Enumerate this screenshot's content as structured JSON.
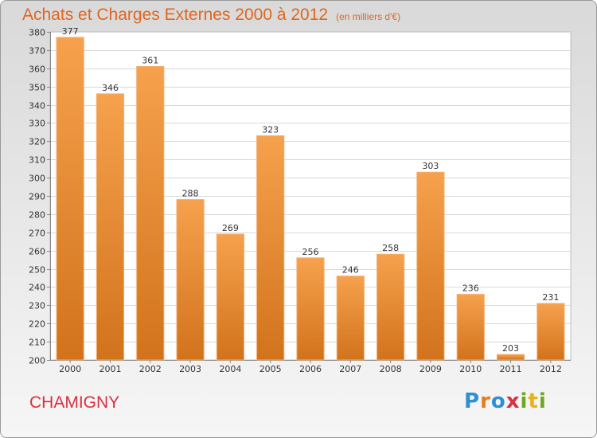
{
  "header": {
    "title": "Achats et Charges Externes 2000 à 2012",
    "unit": "(en milliers d'€)"
  },
  "footer": {
    "commune": "CHAMIGNY",
    "logo": "Proxiti",
    "logo_letters": [
      "P",
      "r",
      "o",
      "x",
      "i",
      "t",
      "i"
    ],
    "logo_colors": [
      "#2f8fd1",
      "#e87b1c",
      "#2f8fd1",
      "#d9313e",
      "#6aa81f",
      "#e8b21c",
      "#6aa81f"
    ]
  },
  "colors": {
    "bar_top": "#f6a14d",
    "bar_bottom": "#d2731c",
    "title": "#e0661f",
    "commune": "#d9313e"
  },
  "chart_data": {
    "type": "bar",
    "categories": [
      "2000",
      "2001",
      "2002",
      "2003",
      "2004",
      "2005",
      "2006",
      "2007",
      "2008",
      "2009",
      "2010",
      "2011",
      "2012"
    ],
    "values": [
      377,
      346,
      361,
      288,
      269,
      323,
      256,
      246,
      258,
      303,
      236,
      203,
      231
    ],
    "ylim": [
      200,
      380
    ],
    "yticks": [
      200,
      210,
      220,
      230,
      240,
      250,
      260,
      270,
      280,
      290,
      300,
      310,
      320,
      330,
      340,
      350,
      360,
      370,
      380
    ],
    "grid": true,
    "legend": "none"
  }
}
